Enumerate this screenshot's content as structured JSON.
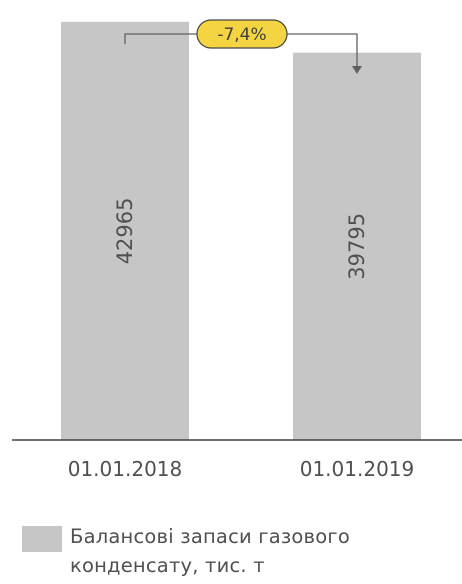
{
  "chart_data": {
    "type": "bar",
    "categories": [
      "01.01.2018",
      "01.01.2019"
    ],
    "series": [
      {
        "name": "Балансові запаси газового конденсату, тис. т",
        "values": [
          42965,
          39795
        ]
      }
    ],
    "value_labels": [
      "42965",
      "39795"
    ],
    "change_label": "-7,4%",
    "ylim": [
      0,
      45000
    ],
    "grid": false,
    "legend_position": "bottom",
    "colors": {
      "bar": "#c6c6c6",
      "badge": "#f5d442",
      "axis": "#404040",
      "text": "#505050",
      "arrow": "#606060"
    }
  }
}
